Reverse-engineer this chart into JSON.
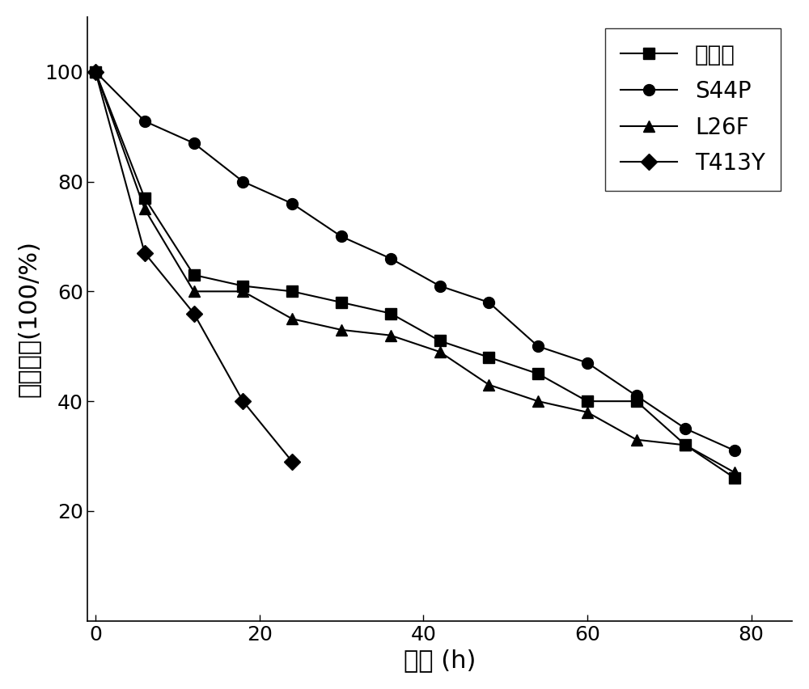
{
  "title": "",
  "xlabel": "时间 (h)",
  "ylabel": "相对酶活(100/%)",
  "xlim": [
    -1,
    85
  ],
  "ylim": [
    0,
    110
  ],
  "xticks": [
    0,
    20,
    40,
    60,
    80
  ],
  "yticks": [
    20,
    40,
    60,
    80,
    100
  ],
  "series": [
    {
      "label": "野生型",
      "marker": "s",
      "x": [
        0,
        6,
        12,
        18,
        24,
        30,
        36,
        42,
        48,
        54,
        60,
        66,
        72,
        78
      ],
      "y": [
        100,
        77,
        63,
        61,
        60,
        58,
        56,
        51,
        48,
        45,
        40,
        40,
        32,
        26
      ]
    },
    {
      "label": "S44P",
      "marker": "o",
      "x": [
        0,
        6,
        12,
        18,
        24,
        30,
        36,
        42,
        48,
        54,
        60,
        66,
        72,
        78
      ],
      "y": [
        100,
        91,
        87,
        80,
        76,
        70,
        66,
        61,
        58,
        50,
        47,
        41,
        35,
        31
      ]
    },
    {
      "label": "L26F",
      "marker": "^",
      "x": [
        0,
        6,
        12,
        18,
        24,
        30,
        36,
        42,
        48,
        54,
        60,
        66,
        72,
        78
      ],
      "y": [
        100,
        75,
        60,
        60,
        55,
        53,
        52,
        49,
        43,
        40,
        38,
        33,
        32,
        27
      ]
    },
    {
      "label": "T413Y",
      "marker": "D",
      "x": [
        0,
        6,
        12,
        18,
        24
      ],
      "y": [
        100,
        67,
        56,
        40,
        29
      ]
    }
  ],
  "line_color": "#000000",
  "background_color": "#ffffff",
  "marker_size": 10,
  "linewidth": 1.5,
  "legend_fontsize": 20,
  "axis_fontsize": 22,
  "tick_fontsize": 18
}
